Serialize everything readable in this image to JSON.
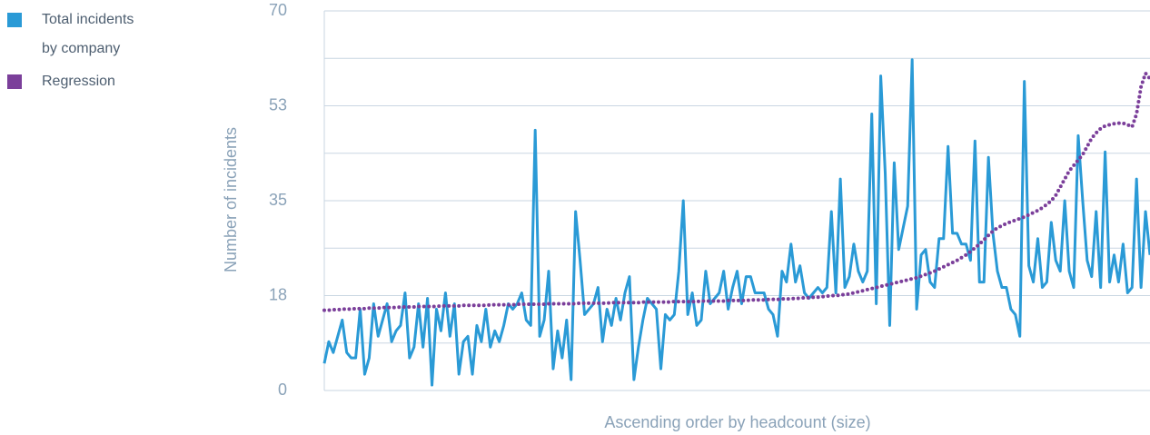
{
  "chart_data": {
    "type": "line",
    "ylabel": "Number of incidents",
    "xlabel": "Ascending order by headcount (size)",
    "ylim": [
      0,
      70
    ],
    "yticks": [
      0,
      {
        "value": 17.5,
        "label": "18"
      },
      35,
      {
        "value": 52.5,
        "label": "53"
      },
      70
    ],
    "ygrid": [
      0,
      8.75,
      17.5,
      26.25,
      35,
      43.75,
      52.5,
      61.25,
      70
    ],
    "legend": "left",
    "series": [
      {
        "name": "Total incidents by company",
        "color": "#2a9ad6",
        "style": "solid",
        "values": [
          5,
          9,
          7,
          10,
          13,
          7,
          6,
          6,
          15,
          3,
          6,
          16,
          10,
          13,
          16,
          9,
          11,
          12,
          18,
          6,
          8,
          16,
          8,
          17,
          1,
          15,
          11,
          18,
          10,
          16,
          3,
          9,
          10,
          3,
          12,
          9,
          15,
          8,
          11,
          9,
          12,
          16,
          15,
          16,
          18,
          13,
          12,
          48,
          10,
          13,
          22,
          4,
          11,
          6,
          13,
          2,
          33,
          24,
          14,
          15,
          16,
          19,
          9,
          15,
          12,
          17,
          13,
          18,
          21,
          2,
          8,
          13,
          17,
          16,
          15,
          4,
          14,
          13,
          14,
          22,
          35,
          14,
          18,
          12,
          13,
          22,
          16,
          17,
          18,
          22,
          15,
          19,
          22,
          16,
          21,
          21,
          18,
          18,
          18,
          15,
          14,
          10,
          22,
          20,
          27,
          20,
          23,
          18,
          17,
          18,
          19,
          18,
          19,
          33,
          18,
          39,
          19,
          21,
          27,
          22,
          20,
          22,
          51,
          16,
          58,
          40,
          12,
          42,
          26,
          30,
          34,
          61,
          15,
          25,
          26,
          20,
          19,
          28,
          28,
          45,
          29,
          29,
          27,
          27,
          24,
          46,
          20,
          20,
          43,
          29,
          22,
          19,
          19,
          15,
          14,
          10,
          57,
          23,
          20,
          28,
          19,
          20,
          31,
          24,
          22,
          35,
          22,
          19,
          47,
          35,
          24,
          21,
          33,
          19,
          44,
          20,
          25,
          20,
          27,
          18,
          19,
          39,
          19,
          33,
          25
        ]
      },
      {
        "name": "Regression",
        "color": "#7b3f9a",
        "style": "dotted",
        "values": [
          14.8,
          14.8,
          14.9,
          14.9,
          15.0,
          15.0,
          15.0,
          15.1,
          15.1,
          15.1,
          15.2,
          15.2,
          15.2,
          15.3,
          15.3,
          15.3,
          15.3,
          15.4,
          15.4,
          15.4,
          15.4,
          15.5,
          15.5,
          15.5,
          15.5,
          15.5,
          15.6,
          15.6,
          15.6,
          15.6,
          15.6,
          15.7,
          15.7,
          15.7,
          15.7,
          15.7,
          15.7,
          15.8,
          15.8,
          15.8,
          15.8,
          15.8,
          15.8,
          15.9,
          15.9,
          15.9,
          15.9,
          15.9,
          15.9,
          15.9,
          16.0,
          16.0,
          16.0,
          16.0,
          16.0,
          16.0,
          16.0,
          16.1,
          16.1,
          16.1,
          16.1,
          16.1,
          16.1,
          16.1,
          16.2,
          16.2,
          16.2,
          16.2,
          16.2,
          16.2,
          16.2,
          16.3,
          16.3,
          16.3,
          16.3,
          16.3,
          16.3,
          16.3,
          16.4,
          16.4,
          16.4,
          16.4,
          16.4,
          16.4,
          16.5,
          16.5,
          16.5,
          16.5,
          16.5,
          16.5,
          16.6,
          16.6,
          16.6,
          16.6,
          16.6,
          16.7,
          16.7,
          16.7,
          16.7,
          16.8,
          16.8,
          16.8,
          16.9,
          16.9,
          16.9,
          17.0,
          17.0,
          17.1,
          17.1,
          17.2,
          17.2,
          17.3,
          17.4,
          17.5,
          17.5,
          17.6,
          17.7,
          17.8,
          18.0,
          18.2,
          18.4,
          18.6,
          18.8,
          19.0,
          19.2,
          19.4,
          19.6,
          19.8,
          20.0,
          20.2,
          20.4,
          20.6,
          20.8,
          21.1,
          21.4,
          21.7,
          22.0,
          22.4,
          22.8,
          23.2,
          23.6,
          24.0,
          24.5,
          25.0,
          25.6,
          26.3,
          27.0,
          27.8,
          28.6,
          29.4,
          30.0,
          30.4,
          30.8,
          31.1,
          31.4,
          31.7,
          32.0,
          32.4,
          32.8,
          33.2,
          33.7,
          34.3,
          35.0,
          36.0,
          37.5,
          39.0,
          40.5,
          41.5,
          42.5,
          43.5,
          45.0,
          46.5,
          47.5,
          48.3,
          48.8,
          49.0,
          49.2,
          49.3,
          49.3,
          49.0,
          48.6,
          51.0,
          56.0,
          58.5,
          57.5
        ]
      }
    ]
  }
}
